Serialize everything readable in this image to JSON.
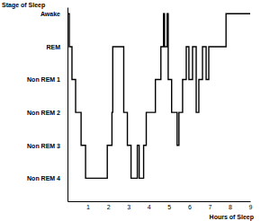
{
  "chart_data": {
    "type": "line",
    "xlabel": "Hours of Sleep",
    "ylabel": "Stage of Sleep",
    "x": [
      0.0,
      0.09,
      0.22,
      0.4,
      0.67,
      0.89,
      1.96,
      2.19,
      2.23,
      2.77,
      2.95,
      3.13,
      3.44,
      3.53,
      3.75,
      3.88,
      4.33,
      4.6,
      4.73,
      4.78,
      4.91,
      4.96,
      5.13,
      5.4,
      5.49,
      5.67,
      5.85,
      5.98,
      6.16,
      6.34,
      6.47,
      6.65,
      6.83,
      6.96,
      7.81,
      9.0
    ],
    "series": [
      {
        "name": "Stage of Sleep",
        "color": "#000000",
        "values": [
          5,
          4,
          3,
          2,
          1,
          0,
          1,
          2,
          4,
          2,
          1,
          0,
          1,
          0,
          1,
          2,
          3,
          4,
          5,
          4,
          5,
          3,
          2,
          1,
          2,
          3,
          4,
          3,
          4,
          2,
          3,
          4,
          3,
          4,
          5,
          5
        ]
      }
    ],
    "xlim": [
      0,
      9
    ],
    "xticks": [
      1,
      2,
      3,
      4,
      5,
      6,
      7,
      8,
      9
    ],
    "ylim": [
      -0.7,
      5.2
    ],
    "yticks": [
      {
        "value": 5,
        "label": "Awake"
      },
      {
        "value": 4,
        "label": "REM"
      },
      {
        "value": 3,
        "label": "Non REM 1"
      },
      {
        "value": 2,
        "label": "Non REM 2"
      },
      {
        "value": 1,
        "label": "Non REM 3"
      },
      {
        "value": 0,
        "label": "Non REM 4"
      }
    ],
    "grid": false,
    "line_style": "step"
  }
}
